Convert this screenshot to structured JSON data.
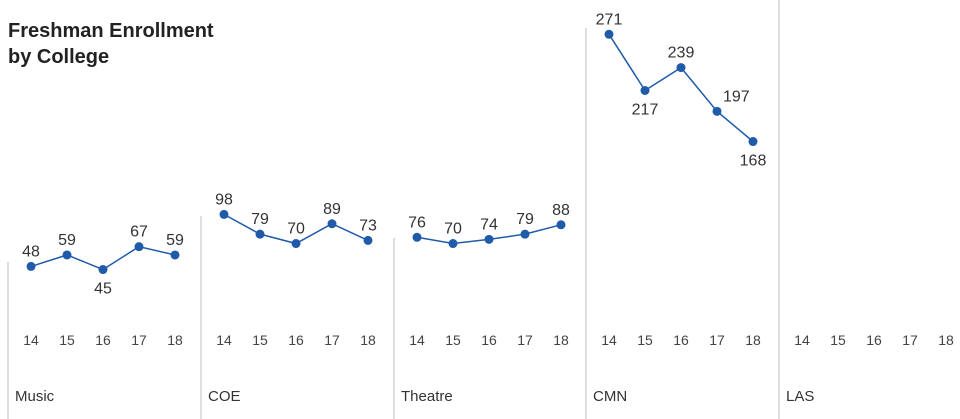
{
  "chart_data": {
    "type": "line",
    "title_lines": [
      "Freshman Enrollment",
      "by College"
    ],
    "x": [
      "14",
      "15",
      "16",
      "17",
      "18"
    ],
    "series_color": "#1f5ba8",
    "divider_color": "#bdbdbd",
    "panels": [
      {
        "college": "Music",
        "values": [
          48,
          59,
          45,
          67,
          59
        ]
      },
      {
        "college": "COE",
        "values": [
          98,
          79,
          70,
          89,
          73
        ]
      },
      {
        "college": "Theatre",
        "values": [
          76,
          70,
          74,
          79,
          88
        ]
      },
      {
        "college": "CMN",
        "values": [
          271,
          217,
          239,
          197,
          168
        ]
      },
      {
        "college": "LAS",
        "values": []
      }
    ]
  }
}
